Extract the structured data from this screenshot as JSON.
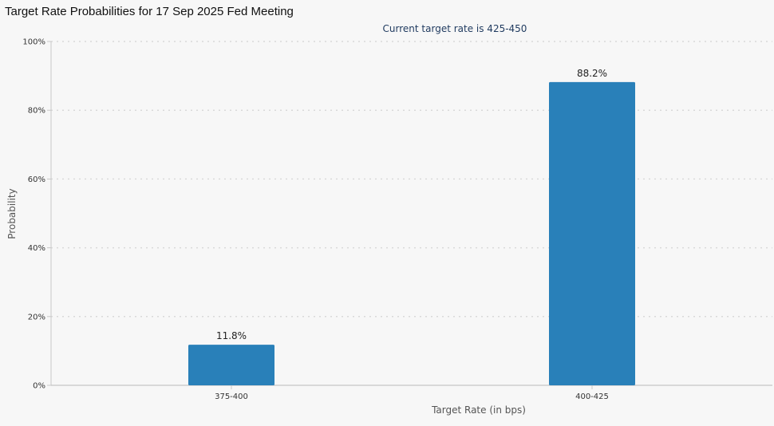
{
  "page": {
    "title": "Target Rate Probabilities for 17 Sep 2025 Fed Meeting"
  },
  "colors": {
    "bar": "#2980b9",
    "background": "#f7f7f7",
    "gridline": "#d9d9d9",
    "axis": "#c8c8c8",
    "subtitle": "#1f3a5f",
    "text": "#333333"
  },
  "chart_data": {
    "type": "bar",
    "title": "",
    "subtitle": "Current target rate is 425-450",
    "xlabel": "Target Rate (in bps)",
    "ylabel": "Probability",
    "categories": [
      "375-400",
      "400-425"
    ],
    "values": [
      11.8,
      88.2
    ],
    "data_labels": [
      "11.8%",
      "88.2%"
    ],
    "ylim": [
      0,
      100
    ],
    "yticks": [
      0,
      20,
      40,
      60,
      80,
      100
    ],
    "ytick_labels": [
      "0%",
      "20%",
      "40%",
      "60%",
      "80%",
      "100%"
    ],
    "grid": "horizontal dotted",
    "legend": "none"
  }
}
